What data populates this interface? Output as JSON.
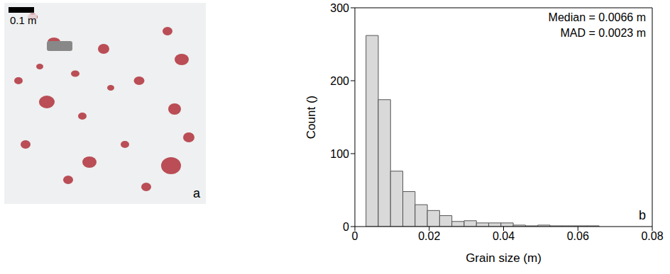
{
  "panel_a": {
    "label": "a",
    "scale_bar_label": "0.1 m"
  },
  "chart_data": {
    "type": "histogram",
    "x_label": "Grain size (m)",
    "y_label": "Count ()",
    "annotations": [
      "Median = 0.0066 m",
      "MAD = 0.0023 m",
      "b"
    ],
    "bins": [
      0.003,
      0.0063,
      0.0096,
      0.0129,
      0.0162,
      0.0195,
      0.0228,
      0.0261,
      0.0294,
      0.0327,
      0.036,
      0.0393,
      0.0426,
      0.0459,
      0.0492,
      0.0525,
      0.0558,
      0.0591,
      0.0624,
      0.0657
    ],
    "values": [
      262,
      174,
      76,
      48,
      30,
      22,
      15,
      7,
      8,
      5,
      5,
      5,
      2,
      1,
      2,
      1,
      1,
      1,
      1
    ],
    "color": "#d9d9d9",
    "xlim": [
      0,
      0.08
    ],
    "xticks": [
      0,
      0.02,
      0.04,
      0.06,
      0.08
    ],
    "ylim": [
      0,
      300
    ],
    "yticks": [
      0,
      100,
      200,
      300
    ],
    "grid": false
  }
}
